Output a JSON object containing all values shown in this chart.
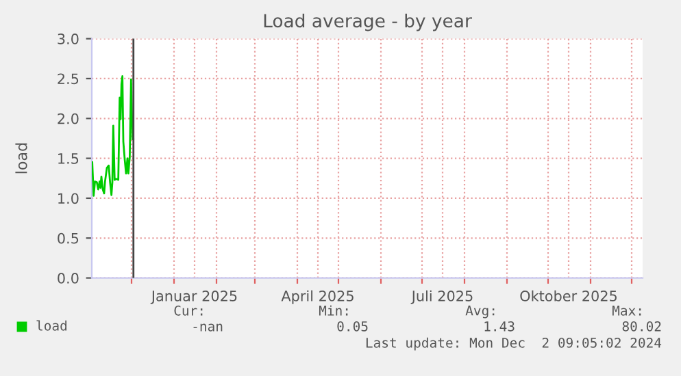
{
  "chart_data": {
    "type": "line",
    "title": "Load average - by year",
    "ylabel": "load",
    "x": [
      "2024-11-02T08:00",
      "2024-11-03T08:00",
      "2024-11-04T08:00",
      "2024-11-05T16:00",
      "2024-11-06T16:00",
      "2024-11-07T16:00",
      "2024-11-08T08:00",
      "2024-11-09T00:00",
      "2024-11-10T00:00",
      "2024-11-11T00:00",
      "2024-11-11T16:00",
      "2024-11-13T00:00",
      "2024-11-14T08:00",
      "2024-11-15T08:00",
      "2024-11-16T08:00",
      "2024-11-17T00:00",
      "2024-11-17T16:00",
      "2024-11-18T16:00",
      "2024-11-19T08:00",
      "2024-11-20T08:00",
      "2024-11-21T08:00",
      "2024-11-22T08:00",
      "2024-11-23T00:00",
      "2024-11-23T16:00",
      "2024-11-24T08:00",
      "2024-11-25T00:00",
      "2024-11-26T00:00",
      "2024-11-27T00:00",
      "2024-11-28T00:00",
      "2024-11-28T16:00",
      "2024-11-29T16:00",
      "2024-11-30T16:00",
      "2024-12-01T16:00",
      "2024-12-02T08:00"
    ],
    "series": [
      {
        "name": "load",
        "color": "#00cc00",
        "values": [
          1.45,
          1.03,
          1.21,
          1.2,
          1.11,
          1.21,
          1.13,
          1.27,
          1.11,
          1.06,
          1.21,
          1.38,
          1.41,
          1.2,
          1.04,
          1.2,
          1.91,
          1.23,
          1.24,
          1.24,
          1.23,
          2.26,
          1.99,
          2.43,
          2.53,
          1.71,
          1.49,
          1.31,
          1.5,
          1.31,
          1.51,
          2.49,
          1.74,
          1.74
        ]
      }
    ],
    "xlim": [
      "2024-11-02",
      "2025-12-09"
    ],
    "xticks": [
      {
        "value": "2024-12-01",
        "label": null
      },
      {
        "value": "2025-01-01",
        "label": null
      },
      {
        "value": "2025-01-16",
        "label": "Januar 2025"
      },
      {
        "value": "2025-02-01",
        "label": null
      },
      {
        "value": "2025-03-01",
        "label": null
      },
      {
        "value": "2025-04-01",
        "label": null
      },
      {
        "value": "2025-04-16",
        "label": "April 2025"
      },
      {
        "value": "2025-05-01",
        "label": null
      },
      {
        "value": "2025-06-01",
        "label": null
      },
      {
        "value": "2025-07-01",
        "label": null
      },
      {
        "value": "2025-07-16",
        "label": "Juli 2025"
      },
      {
        "value": "2025-08-01",
        "label": null
      },
      {
        "value": "2025-09-01",
        "label": null
      },
      {
        "value": "2025-10-01",
        "label": null
      },
      {
        "value": "2025-10-16",
        "label": "Oktober 2025"
      },
      {
        "value": "2025-11-01",
        "label": null
      },
      {
        "value": "2025-12-01",
        "label": null
      }
    ],
    "ylim": [
      0,
      3
    ],
    "yticks": [
      {
        "value": 0,
        "label": "0.0"
      },
      {
        "value": 0.5,
        "label": "0.5"
      },
      {
        "value": 1,
        "label": "1.0"
      },
      {
        "value": 1.5,
        "label": "1.5"
      },
      {
        "value": 2,
        "label": "2.0"
      },
      {
        "value": 2.5,
        "label": "2.5"
      },
      {
        "value": 3,
        "label": "3.0"
      }
    ],
    "ref_lines": [
      {
        "axis": "x",
        "value": "2024-12-02T09:05",
        "label": null,
        "color": "#444444"
      }
    ],
    "grid": true,
    "legend": "bottom",
    "marker": "none",
    "line_style": "solid",
    "annotations": [
      "Cur:",
      "Min:",
      "Avg:",
      "Max:",
      "-nan",
      "0.05",
      "1.43",
      "80.02",
      "Last update: Mon Dec  2 09:05:02 2024"
    ]
  }
}
